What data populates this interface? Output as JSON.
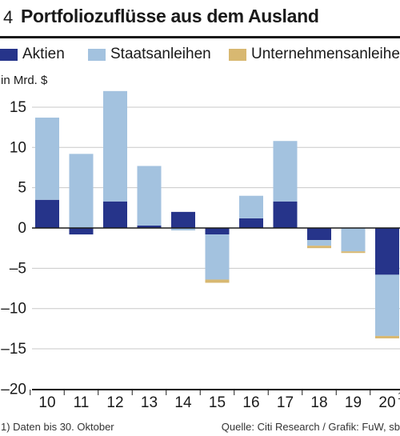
{
  "header": {
    "number": "4",
    "title": "Portfoliozuflüsse aus dem Ausland"
  },
  "legend": [
    {
      "label": "Aktien",
      "color": "#26348a"
    },
    {
      "label": "Staatsanleihen",
      "color": "#a3c2df"
    },
    {
      "label": "Unternehmensanleihen",
      "color": "#d8b871"
    }
  ],
  "unit": "in Mrd. $",
  "footer": {
    "note": "1) Daten bis 30. Oktober",
    "source": "Quelle: Citi Research / Grafik: FuW, sb"
  },
  "chart_data": {
    "type": "bar",
    "stacked": true,
    "categories": [
      "10",
      "11",
      "12",
      "13",
      "14",
      "15",
      "16",
      "17",
      "18",
      "19",
      "20"
    ],
    "category_footnotes": [
      "",
      "",
      "",
      "",
      "",
      "",
      "",
      "",
      "",
      "",
      "1"
    ],
    "ylabel": "in Mrd. $",
    "ylim": [
      -20,
      17
    ],
    "yticks": [
      15,
      10,
      5,
      0,
      -5,
      -10,
      -15,
      -20
    ],
    "ytick_labels": [
      "15",
      "10",
      "5",
      "0",
      "–5",
      "–10",
      "–15",
      "–20"
    ],
    "grid": true,
    "legend_position": "top",
    "series": [
      {
        "name": "Aktien",
        "color": "#26348a",
        "values": [
          3.5,
          -0.8,
          3.3,
          0.3,
          2.0,
          -0.8,
          1.2,
          3.3,
          -1.5,
          0.0,
          -5.8
        ]
      },
      {
        "name": "Staatsanleihen",
        "color": "#a3c2df",
        "values": [
          10.2,
          9.2,
          13.7,
          7.4,
          -0.3,
          -5.6,
          2.8,
          7.5,
          -0.7,
          -2.9,
          -7.6
        ]
      },
      {
        "name": "Unternehmensanleihen",
        "color": "#d8b871",
        "values": [
          0.0,
          0.0,
          0.0,
          0.0,
          0.0,
          -0.4,
          0.0,
          0.0,
          -0.3,
          -0.2,
          -0.3
        ]
      }
    ]
  }
}
